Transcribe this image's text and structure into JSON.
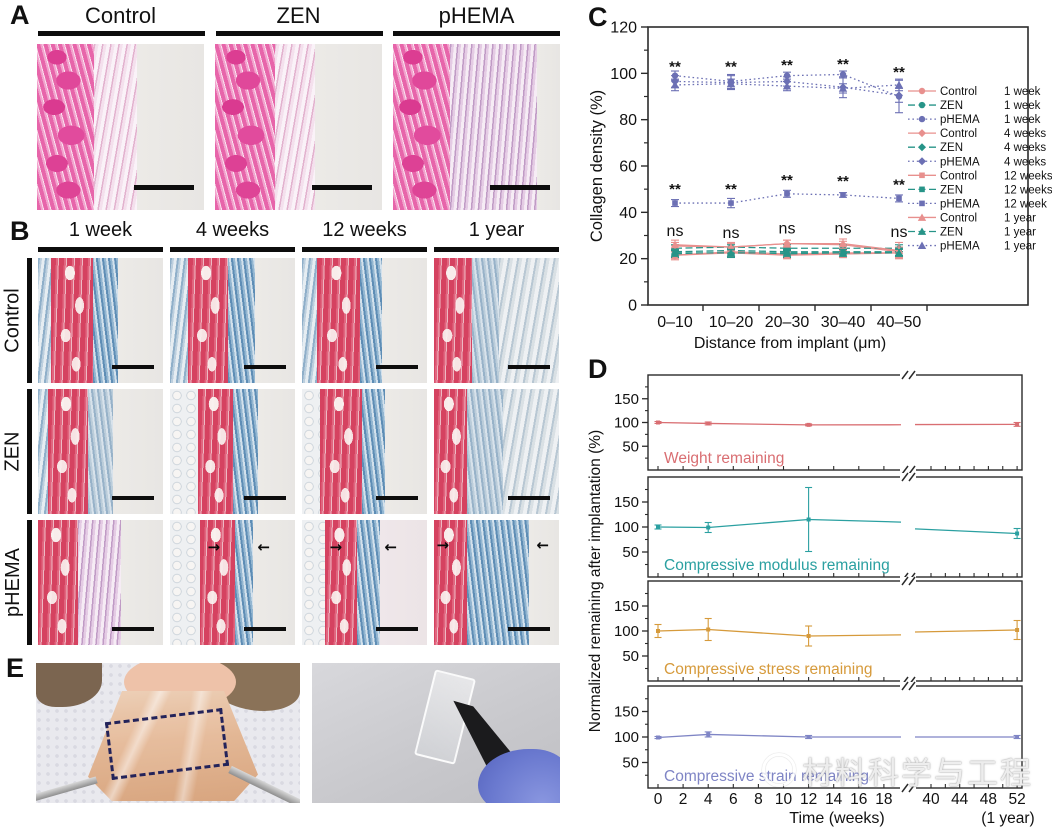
{
  "figure": {
    "panels": {
      "A": {
        "label": "A",
        "columns": [
          "Control",
          "ZEN",
          "pHEMA"
        ]
      },
      "B": {
        "label": "B",
        "columns": [
          "1 week",
          "4 weeks",
          "12 weeks",
          "1 year"
        ],
        "rows": [
          "Control",
          "ZEN",
          "pHEMA"
        ]
      },
      "C": {
        "label": "C"
      },
      "D": {
        "label": "D"
      },
      "E": {
        "label": "E"
      }
    },
    "watermark": "材料科学与工程"
  },
  "chart_data": [
    {
      "id": "collagen-density",
      "type": "line",
      "xlabel": "Distance from implant (μm)",
      "ylabel": "Collagen density (%)",
      "ylim": [
        0,
        120
      ],
      "yticks": [
        0,
        20,
        40,
        60,
        80,
        100,
        120
      ],
      "categories": [
        "0–10",
        "10–20",
        "20–30",
        "30–40",
        "40–50"
      ],
      "legend_position": "right-inside",
      "series": [
        {
          "name": "Control",
          "time": "1 week",
          "marker": "circle",
          "line": "solid",
          "color": "#e8908e",
          "values": [
            21.5,
            23,
            22,
            22.5,
            22.5
          ],
          "errors": [
            2,
            2,
            2,
            2,
            2
          ]
        },
        {
          "name": "ZEN",
          "time": "1 week",
          "marker": "circle",
          "line": "dashed",
          "color": "#279488",
          "values": [
            22,
            22.5,
            22,
            22,
            23
          ],
          "errors": [
            1.5,
            2,
            1.5,
            1.5,
            2
          ]
        },
        {
          "name": "pHEMA",
          "time": "1 week",
          "marker": "circle",
          "line": "dotted",
          "color": "#6c70b4",
          "values": [
            99,
            96.5,
            99,
            99.5,
            90
          ],
          "errors": [
            2,
            3,
            1.5,
            1.5,
            7
          ]
        },
        {
          "name": "Control",
          "time": "4 weeks",
          "marker": "diamond",
          "line": "solid",
          "color": "#e8908e",
          "values": [
            25.5,
            25,
            26.5,
            26,
            23
          ],
          "errors": [
            1.5,
            1.5,
            1.5,
            1.5,
            2
          ]
        },
        {
          "name": "ZEN",
          "time": "4 weeks",
          "marker": "diamond",
          "line": "dashed",
          "color": "#279488",
          "values": [
            24.5,
            25,
            24.5,
            24.5,
            24.5
          ],
          "errors": [
            1.5,
            1,
            1.5,
            1.5,
            1.5
          ]
        },
        {
          "name": "pHEMA",
          "time": "4 weeks",
          "marker": "diamond",
          "line": "dotted",
          "color": "#6c70b4",
          "values": [
            96.5,
            96,
            96.5,
            94,
            90.5
          ],
          "errors": [
            2.5,
            3,
            2,
            4.5,
            3
          ]
        },
        {
          "name": "Control",
          "time": "12 weeks",
          "marker": "square",
          "line": "solid",
          "color": "#e8908e",
          "values": [
            21.5,
            22.5,
            21.5,
            22,
            22.5
          ],
          "errors": [
            1.5,
            1.5,
            1.5,
            1.5,
            2.5
          ]
        },
        {
          "name": "ZEN",
          "time": "12 weeks",
          "marker": "square",
          "line": "dashed",
          "color": "#279488",
          "values": [
            23,
            23.5,
            23,
            23,
            23
          ],
          "errors": [
            1,
            1.5,
            1,
            1,
            1.5
          ]
        },
        {
          "name": "pHEMA",
          "time": "12 week",
          "marker": "square",
          "line": "dotted",
          "color": "#6c70b4",
          "values": [
            44,
            44,
            48,
            47.5,
            46
          ],
          "errors": [
            1.5,
            2,
            1.5,
            1,
            1.5
          ]
        },
        {
          "name": "Control",
          "time": "1 year",
          "marker": "triangle",
          "line": "solid",
          "color": "#e8908e",
          "values": [
            26,
            25,
            26.5,
            26.5,
            23.5
          ],
          "errors": [
            2,
            2,
            1.5,
            2,
            3.5
          ]
        },
        {
          "name": "ZEN",
          "time": "1 year",
          "marker": "triangle",
          "line": "dashed",
          "color": "#279488",
          "values": [
            22.5,
            22.5,
            22.5,
            22.5,
            22.5
          ],
          "errors": [
            1.5,
            1.5,
            1.5,
            1.5,
            1.5
          ]
        },
        {
          "name": "pHEMA",
          "time": "1 year",
          "marker": "triangle",
          "line": "dotted",
          "color": "#6c70b4",
          "values": [
            95,
            95.5,
            94.5,
            93.5,
            95
          ],
          "errors": [
            2.5,
            2,
            2,
            2,
            2.5
          ]
        }
      ],
      "annotations": [
        {
          "text": "**",
          "values": [
            103,
            103,
            103.5,
            104,
            100.5
          ]
        },
        {
          "text": "**",
          "values": [
            50,
            50,
            54,
            53.5,
            52
          ]
        },
        {
          "text": "ns",
          "values": [
            32,
            31,
            33,
            33,
            31.5
          ]
        }
      ]
    },
    {
      "id": "remaining-after-implantation",
      "type": "line",
      "xlabel": "Time (weeks)",
      "xlabel_right": "(1 year)",
      "ylabel": "Normalized remaining after implantation (%)",
      "x_weeks": [
        0,
        4,
        12,
        52
      ],
      "xticks_left": [
        0,
        2,
        4,
        6,
        8,
        10,
        12,
        14,
        16,
        18
      ],
      "xticks_right": [
        40,
        44,
        48,
        52
      ],
      "axis_break_between": [
        19,
        40
      ],
      "ylim": [
        0,
        200
      ],
      "yticks": [
        50,
        100,
        150
      ],
      "subplots": [
        {
          "label": "Weight remaining",
          "color": "#d96e72",
          "values": [
            100,
            98,
            95,
            96
          ],
          "errors": [
            2,
            3,
            2,
            4
          ]
        },
        {
          "label": "Compressive modulus remaining",
          "color": "#2ba0a1",
          "values": [
            100,
            99,
            115,
            87
          ],
          "errors": [
            4,
            10,
            64,
            10
          ]
        },
        {
          "label": "Compressive stress remaining",
          "color": "#d69a3b",
          "values": [
            100,
            103,
            90,
            102
          ],
          "errors": [
            13,
            22,
            20,
            19
          ]
        },
        {
          "label": "Compressive strain remaining",
          "color": "#7f85c5",
          "values": [
            99,
            105,
            100,
            100
          ],
          "errors": [
            2,
            5,
            3,
            3
          ]
        }
      ]
    }
  ]
}
